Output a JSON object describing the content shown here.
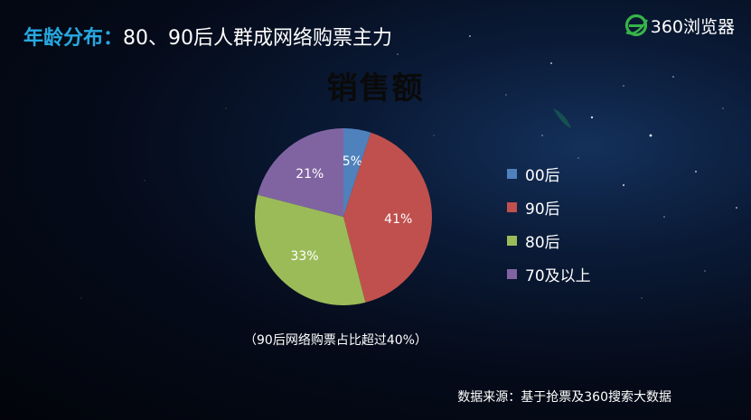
{
  "header": {
    "topic": "年龄分布：",
    "headline": "80、90后人群成网络购票主力"
  },
  "brand": {
    "label": "360浏览器",
    "icon": "browser-e-logo",
    "color": "#36b44a"
  },
  "chart_data": {
    "type": "pie",
    "title": "销售额",
    "categories": [
      "00后",
      "90后",
      "80后",
      "70及以上"
    ],
    "values": [
      5,
      41,
      33,
      21
    ],
    "labels": [
      "5%",
      "41%",
      "33%",
      "21%"
    ],
    "colors": [
      "#4f81bd",
      "#c0504d",
      "#9bbb59",
      "#8064a2"
    ],
    "legend_position": "right"
  },
  "note": "（90后网络购票占比超过40%）",
  "source": "数据来源：基于抢票及360搜索大数据"
}
